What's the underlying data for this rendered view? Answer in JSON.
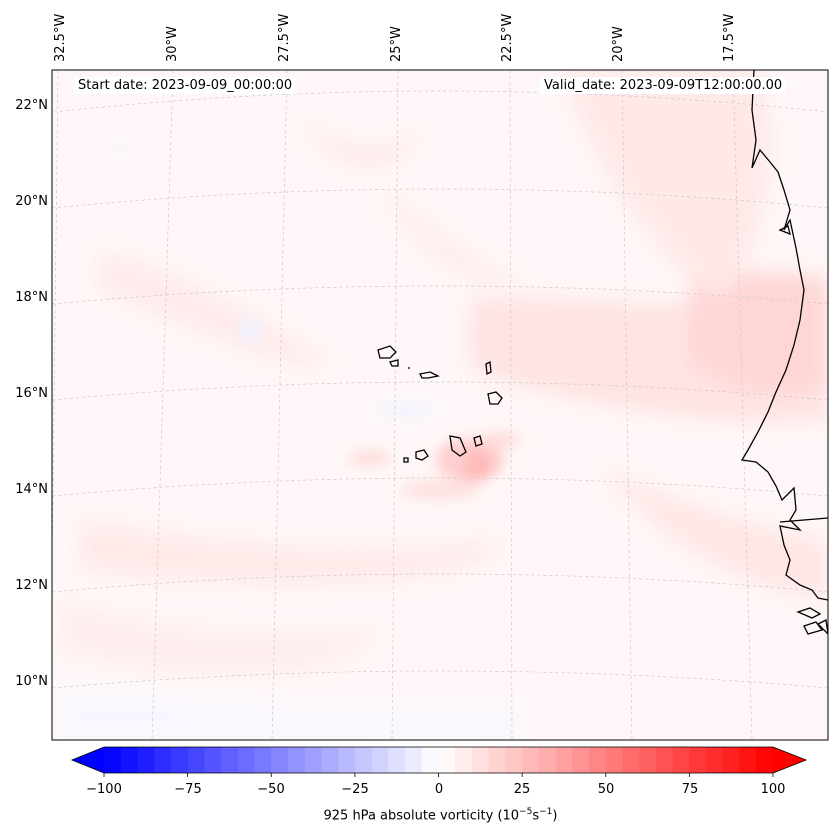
{
  "map": {
    "projection": "lambert-conformal",
    "longitude_labels": [
      "32.5°W",
      "30°W",
      "27.5°W",
      "25°W",
      "22.5°W",
      "20°W",
      "17.5°W"
    ],
    "latitude_labels": [
      "22°N",
      "20°N",
      "18°N",
      "16°N",
      "14°N",
      "12°N",
      "10°N"
    ],
    "start_date": "Start date: 2023-09-09_00:00:00",
    "valid_date": "Valid_date: 2023-09-09T12:00:00.00",
    "gridlines": true,
    "features": [
      "Cape Verde islands",
      "West African coastline (Mauritania, Senegal, Guinea-Bissau)"
    ]
  },
  "colorbar": {
    "title_main": "925 hPa absolute vorticity (10",
    "title_exp1": "−5",
    "title_mid": "s",
    "title_exp2": "−1",
    "title_end": ")",
    "ticks": [
      "−100",
      "−75",
      "−50",
      "−25",
      "0",
      "25",
      "50",
      "75",
      "100"
    ],
    "range": [
      -100,
      100
    ],
    "levels": 40,
    "colormap": "bwr",
    "extend": "both",
    "low_color": "#0000ff",
    "mid_color": "#ffffff",
    "high_color": "#ff0000"
  }
}
